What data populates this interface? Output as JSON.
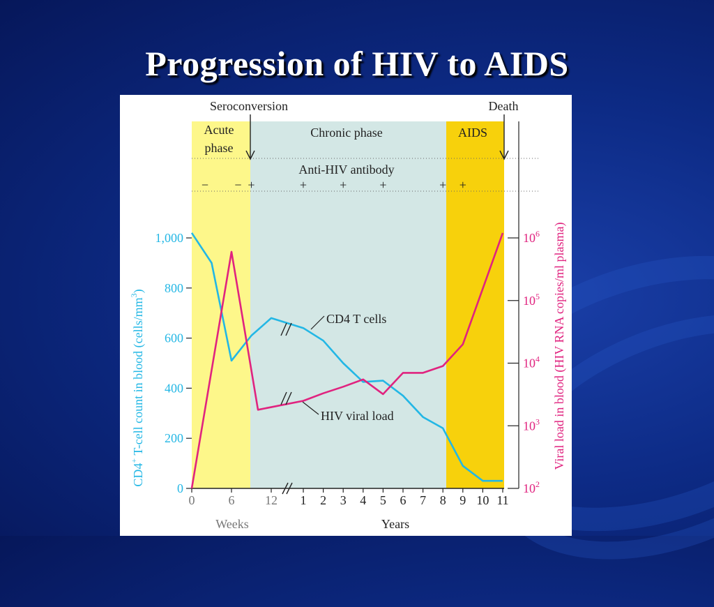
{
  "slide": {
    "title": "Progression of HIV to AIDS"
  },
  "chart_data": {
    "type": "line",
    "title": "",
    "phases": [
      {
        "label_lines": [
          "Acute",
          "phase"
        ],
        "color": "#fdf78a"
      },
      {
        "label_lines": [
          "Chronic phase"
        ],
        "color": "#d3e7e5"
      },
      {
        "label_lines": [
          "AIDS"
        ],
        "color": "#f7d10c"
      }
    ],
    "events": {
      "seroconversion": "Seroconversion",
      "death": "Death"
    },
    "antibody": {
      "label": "Anti-HIV antibody",
      "marks": [
        {
          "x": "2 weeks",
          "sign": "−"
        },
        {
          "x": "7 weeks",
          "sign": "−"
        },
        {
          "x": "9 weeks",
          "sign": "+"
        },
        {
          "x": "1 year",
          "sign": "+"
        },
        {
          "x": "3 years",
          "sign": "+"
        },
        {
          "x": "5 years",
          "sign": "+"
        },
        {
          "x": "8 years",
          "sign": "+"
        },
        {
          "x": "9 years",
          "sign": "+"
        }
      ]
    },
    "x_axis": {
      "segments": [
        {
          "label": "Weeks",
          "ticks": [
            "0",
            "6",
            "12"
          ]
        },
        {
          "label": "Years",
          "ticks": [
            "1",
            "2",
            "3",
            "4",
            "5",
            "6",
            "7",
            "8",
            "9",
            "10",
            "11"
          ]
        }
      ]
    },
    "y_left": {
      "label": "CD4+ T-cell count in blood (cells/mm3)",
      "label_main": "CD4",
      "label_sup": "+",
      "label_mid": " T-cell count in blood (cells/mm",
      "label_sup2": "3",
      "label_end": ")",
      "ticks": [
        "0",
        "200",
        "400",
        "600",
        "800",
        "1,000"
      ],
      "range": [
        0,
        1000
      ],
      "color": "#23b7e5"
    },
    "y_right": {
      "label": "Viral load in blood (HIV RNA copies/ml plasma)",
      "scale": "log",
      "range": [
        100,
        1000000
      ],
      "ticks": [
        {
          "base": "10",
          "exp": "2"
        },
        {
          "base": "10",
          "exp": "3"
        },
        {
          "base": "10",
          "exp": "4"
        },
        {
          "base": "10",
          "exp": "5"
        },
        {
          "base": "10",
          "exp": "6"
        }
      ],
      "color": "#e0237f"
    },
    "series": [
      {
        "name": "CD4 T cells",
        "axis": "left",
        "color": "#23b7e5",
        "points": [
          {
            "x": "0 weeks",
            "y": 1020
          },
          {
            "x": "3 weeks",
            "y": 900
          },
          {
            "x": "6 weeks",
            "y": 510
          },
          {
            "x": "9 weeks",
            "y": 610
          },
          {
            "x": "12 weeks",
            "y": 680
          },
          {
            "x": "1 year",
            "y": 640
          },
          {
            "x": "2 years",
            "y": 590
          },
          {
            "x": "3 years",
            "y": 500
          },
          {
            "x": "4 years",
            "y": 425
          },
          {
            "x": "5 years",
            "y": 430
          },
          {
            "x": "6 years",
            "y": 370
          },
          {
            "x": "7 years",
            "y": 285
          },
          {
            "x": "8 years",
            "y": 240
          },
          {
            "x": "9 years",
            "y": 90
          },
          {
            "x": "10 years",
            "y": 30
          },
          {
            "x": "11 years",
            "y": 30
          }
        ]
      },
      {
        "name": "HIV viral load",
        "axis": "right",
        "color": "#e0237f",
        "points": [
          {
            "x": "0 weeks",
            "y": 100
          },
          {
            "x": "6 weeks",
            "y": 600000
          },
          {
            "x": "10 weeks",
            "y": 1800
          },
          {
            "x": "1 year",
            "y": 2500
          },
          {
            "x": "2 years",
            "y": 3300
          },
          {
            "x": "3 years",
            "y": 4200
          },
          {
            "x": "4 years",
            "y": 5500
          },
          {
            "x": "5 years",
            "y": 3200
          },
          {
            "x": "6 years",
            "y": 7000
          },
          {
            "x": "7 years",
            "y": 7000
          },
          {
            "x": "8 years",
            "y": 9000
          },
          {
            "x": "9 years",
            "y": 20000
          },
          {
            "x": "11 years",
            "y": 1200000
          }
        ]
      }
    ]
  }
}
